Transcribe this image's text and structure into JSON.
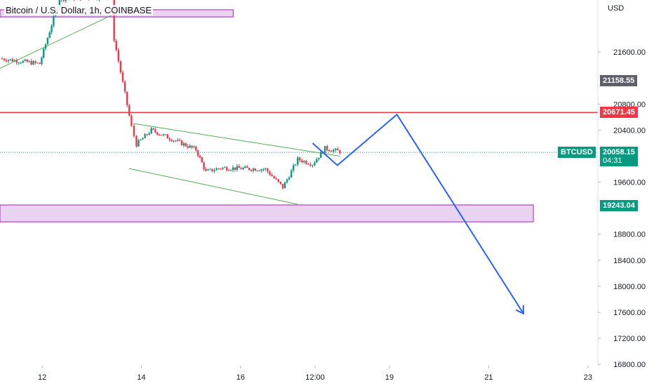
{
  "header": {
    "title": "Bitcoin / U.S. Dollar, 1h, COINBASE",
    "currency": "USD"
  },
  "colors": {
    "up": "#089981",
    "down": "#f23645",
    "resistance": "#f23645",
    "zone_fill": "#ead3f0",
    "zone_stroke": "#9c27b0",
    "channel": "#4caf50",
    "projection": "#2962ff",
    "gray_label": "#5d606b"
  },
  "chart_data": {
    "type": "candlestick",
    "title": "Bitcoin / U.S. Dollar, 1h, COINBASE",
    "y_axis": {
      "unit": "USD",
      "ticks": [
        21600,
        20800,
        20400,
        19600,
        18800,
        18400,
        18000,
        17600,
        17200,
        16800
      ],
      "tick_labels": [
        "21600.00",
        "20800.00",
        "20400.00",
        "19600.00",
        "18800.00",
        "18400.00",
        "18000.00",
        "17600.00",
        "17200.00",
        "16800.00"
      ],
      "range": [
        16780,
        22400
      ]
    },
    "x_axis": {
      "ticks": [
        "12",
        "14",
        "16",
        "12:00",
        "19",
        "21",
        "23"
      ],
      "tick_days": [
        12,
        14,
        16,
        17.5,
        19,
        21,
        23
      ],
      "range": [
        11.15,
        23.2
      ]
    },
    "price_labels": [
      {
        "value": 21158.55,
        "label": "21158.55",
        "kind": "gray"
      },
      {
        "value": 20671.45,
        "label": "20671.45",
        "kind": "resistance"
      },
      {
        "value": 20058.15,
        "label": "20058.15",
        "kind": "last",
        "countdown": "04:31",
        "symbol": "BTCUSD"
      },
      {
        "value": 19243.04,
        "label": "19243.04",
        "kind": "support"
      }
    ],
    "resistance_line": 20671.45,
    "zones": [
      {
        "day_from": 11.15,
        "day_to": 15.85,
        "low": 22140,
        "high": 22250
      },
      {
        "day_from": 11.15,
        "day_to": 21.9,
        "low": 18990,
        "high": 19250
      }
    ],
    "trendlines": [
      {
        "name": "rising",
        "points": [
          [
            11.15,
            21350
          ],
          [
            13.55,
            22220
          ]
        ]
      },
      {
        "name": "channel-upper",
        "points": [
          [
            13.85,
            20500
          ],
          [
            18.0,
            20000
          ]
        ]
      },
      {
        "name": "channel-lower",
        "points": [
          [
            13.75,
            19810
          ],
          [
            17.15,
            19260
          ]
        ]
      }
    ],
    "projection": [
      [
        17.45,
        20200
      ],
      [
        17.95,
        19860
      ],
      [
        19.15,
        20640
      ],
      [
        21.7,
        17580
      ]
    ],
    "candle_segments": [
      {
        "from": [
          11.15,
          21500
        ],
        "to": [
          11.95,
          21420
        ]
      },
      {
        "from": [
          11.95,
          21420
        ],
        "to": [
          12.35,
          22420
        ]
      },
      {
        "from": [
          12.35,
          22420
        ],
        "to": [
          13.4,
          22450
        ]
      },
      {
        "from": [
          13.4,
          22450
        ],
        "to": [
          13.45,
          21800
        ]
      },
      {
        "from": [
          13.45,
          21800
        ],
        "to": [
          13.8,
          20450
        ]
      },
      {
        "from": [
          13.8,
          20450
        ],
        "to": [
          13.9,
          20180
        ]
      },
      {
        "from": [
          13.9,
          20180
        ],
        "to": [
          14.2,
          20400
        ]
      },
      {
        "from": [
          14.2,
          20400
        ],
        "to": [
          15.1,
          20100
        ]
      },
      {
        "from": [
          15.1,
          20100
        ],
        "to": [
          15.3,
          19760
        ]
      },
      {
        "from": [
          15.3,
          19760
        ],
        "to": [
          15.6,
          19820
        ]
      },
      {
        "from": [
          15.6,
          19820
        ],
        "to": [
          16.5,
          19800
        ]
      },
      {
        "from": [
          16.5,
          19800
        ],
        "to": [
          16.85,
          19520
        ]
      },
      {
        "from": [
          16.85,
          19520
        ],
        "to": [
          17.15,
          19950
        ]
      },
      {
        "from": [
          17.15,
          19950
        ],
        "to": [
          17.45,
          19880
        ]
      },
      {
        "from": [
          17.45,
          19880
        ],
        "to": [
          17.7,
          20120
        ]
      },
      {
        "from": [
          17.7,
          20120
        ],
        "to": [
          18.0,
          20070
        ]
      }
    ]
  }
}
